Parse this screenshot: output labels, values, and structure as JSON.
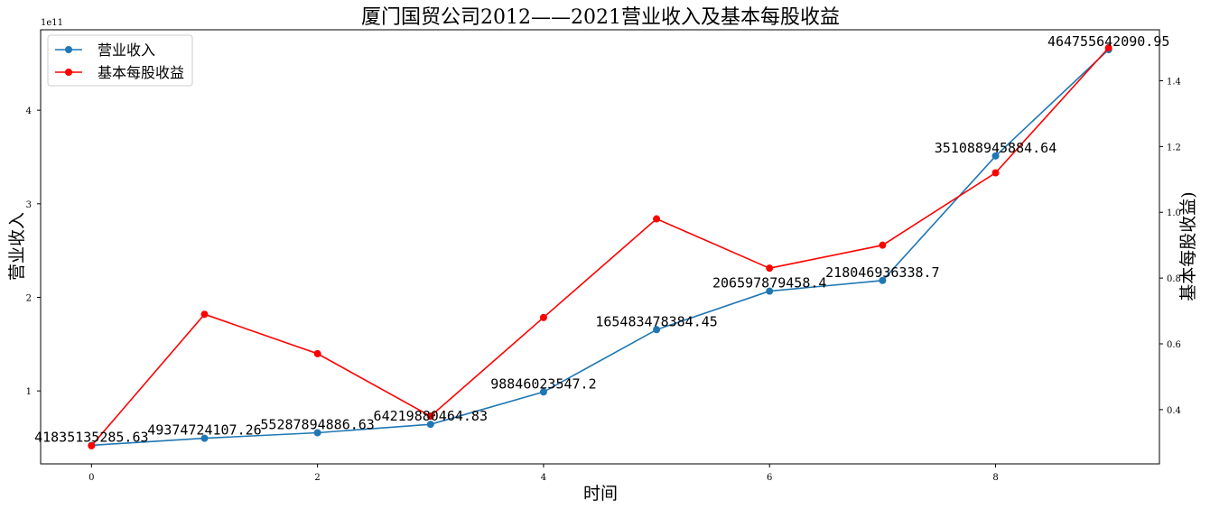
{
  "chart_data": {
    "type": "line",
    "title": "厦门国贸公司2012——2021营业收入及基本每股收益",
    "xlabel": "时间",
    "ylabel_left": "营业收入",
    "ylabel_right": "基本每股收益)",
    "left_axis_offset_text": "1e11",
    "x": [
      0,
      1,
      2,
      3,
      4,
      5,
      6,
      7,
      8,
      9
    ],
    "xticks": [
      0,
      2,
      4,
      6,
      8
    ],
    "xticklabels": [
      "0",
      "2",
      "4",
      "6",
      "8"
    ],
    "xlim": [
      -0.45,
      9.45
    ],
    "ylim_left": [
      0.22,
      4.86
    ],
    "yticks_left": [
      1,
      2,
      3,
      4
    ],
    "yticklabels_left": [
      "1",
      "2",
      "3",
      "4"
    ],
    "ylim_right": [
      0.235,
      1.555
    ],
    "yticks_right": [
      0.4,
      0.6,
      0.8,
      1.0,
      1.2,
      1.4
    ],
    "yticklabels_right": [
      "0.4",
      "0.6",
      "0.8",
      "1.0",
      "1.2",
      "1.4"
    ],
    "series": [
      {
        "name": "营业收入",
        "axis": "left",
        "color": "#1f77b4",
        "values": [
          41835135285.63,
          49374724107.26,
          55287894886.63,
          64219880464.83,
          98846023547.2,
          165483478384.45,
          206597879458.4,
          218046936338.7,
          351088945884.64,
          464755642090.95
        ],
        "labels": [
          "41835135285.63",
          "49374724107.26",
          "55287894886.63",
          "64219880464.83",
          "98846023547.2",
          "165483478384.45",
          "206597879458.4",
          "218046936338.7",
          "351088945884.64",
          "464755642090.95"
        ]
      },
      {
        "name": "基本每股收益",
        "axis": "right",
        "color": "#ff0000",
        "values": [
          0.29,
          0.69,
          0.57,
          0.38,
          0.68,
          0.98,
          0.83,
          0.9,
          1.12,
          1.5
        ]
      }
    ],
    "legend_position": "upper-left",
    "grid": false
  }
}
